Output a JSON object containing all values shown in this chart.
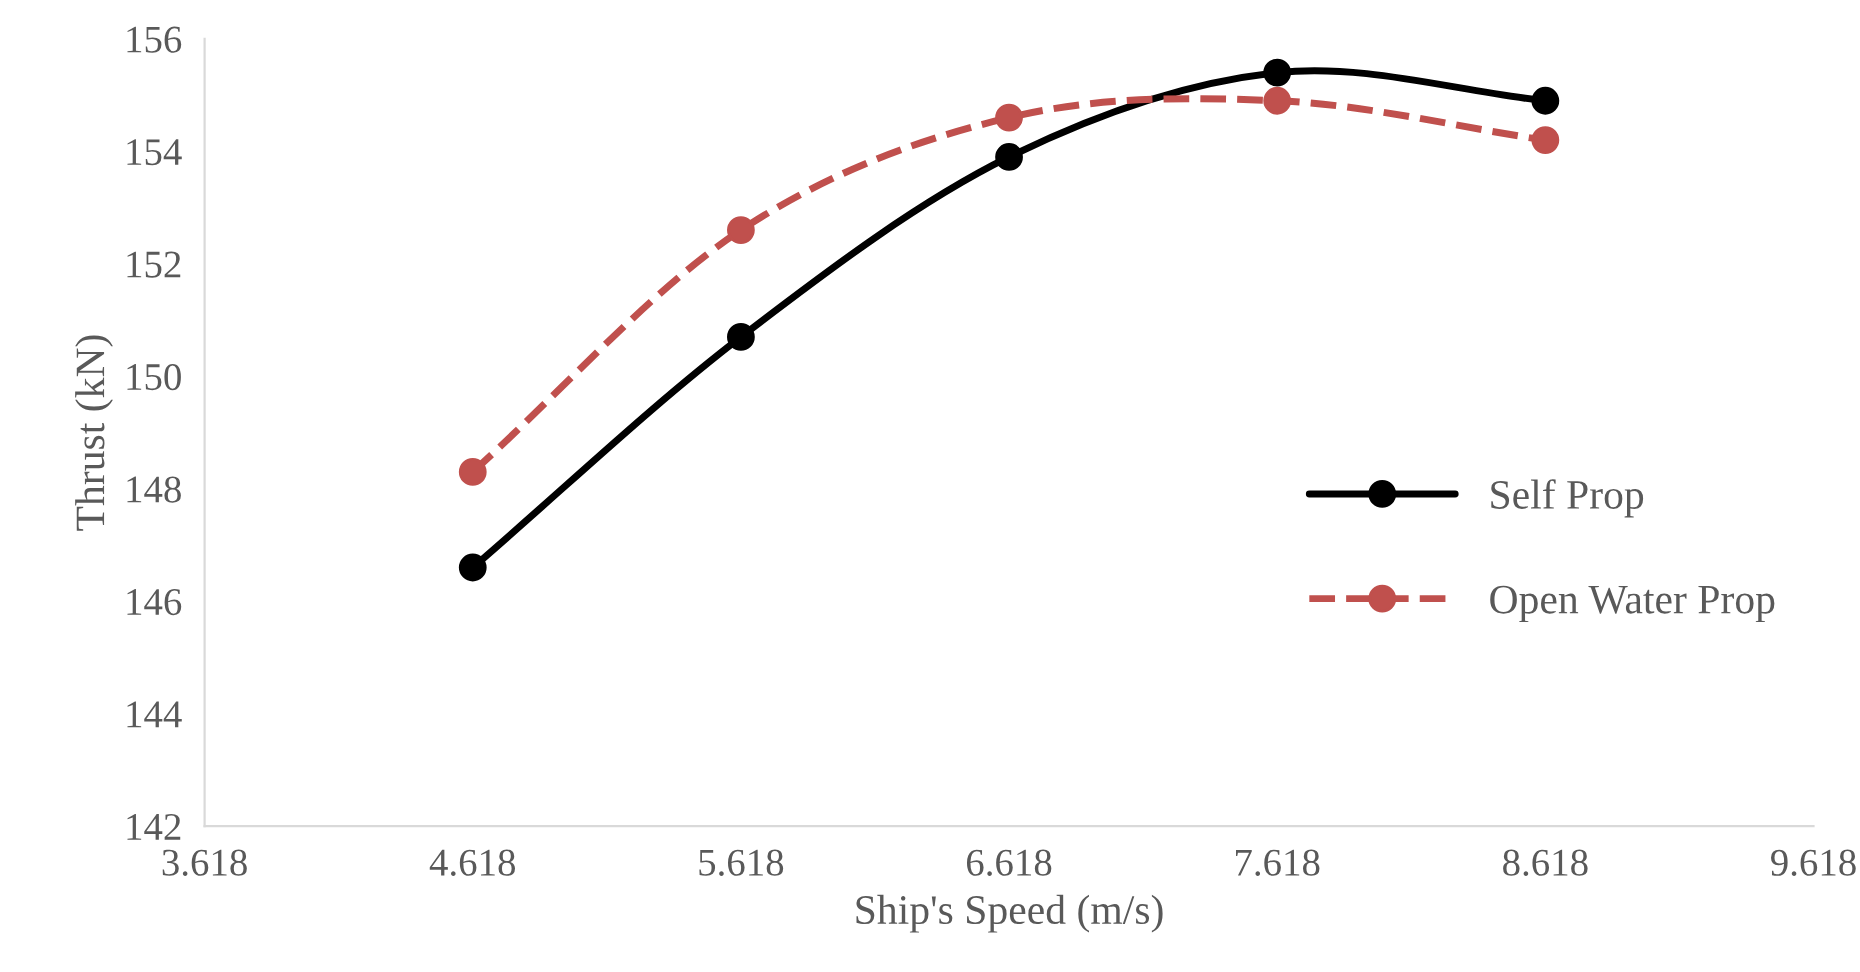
{
  "chart_data": {
    "type": "line",
    "xlabel": "Ship's Speed (m/s)",
    "ylabel": "Thrust (kN)",
    "x": [
      4.618,
      5.618,
      6.618,
      7.618,
      8.618
    ],
    "series": [
      {
        "name": "Self Prop",
        "color": "#000000",
        "values": [
          146.6,
          150.7,
          153.9,
          155.4,
          154.9
        ],
        "line_style": "solid"
      },
      {
        "name": "Open Water Prop",
        "color": "#c0504d",
        "values": [
          148.3,
          152.6,
          154.6,
          154.9,
          154.2
        ],
        "line_style": "dashed"
      }
    ],
    "xlim": [
      3.618,
      9.618
    ],
    "xticks": [
      3.618,
      4.618,
      5.618,
      6.618,
      7.618,
      8.618,
      9.618
    ],
    "ylim": [
      142,
      156
    ],
    "yticks": [
      142,
      144,
      146,
      148,
      150,
      152,
      154,
      156
    ],
    "marker": "circle",
    "legend": "right",
    "grid": false
  }
}
